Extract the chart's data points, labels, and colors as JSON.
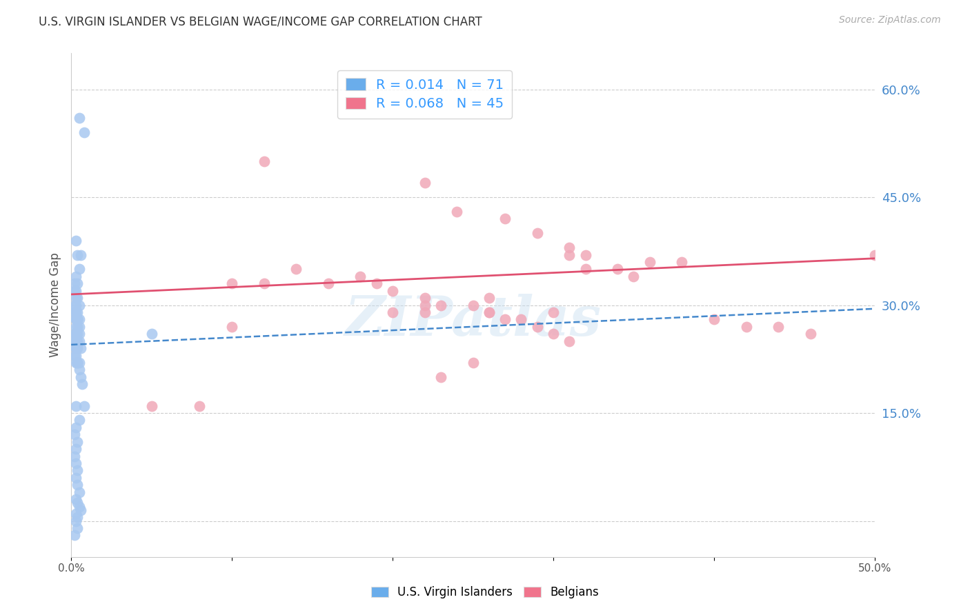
{
  "title": "U.S. VIRGIN ISLANDER VS BELGIAN WAGE/INCOME GAP CORRELATION CHART",
  "source": "Source: ZipAtlas.com",
  "ylabel": "Wage/Income Gap",
  "watermark": "ZIPatlas",
  "legend_entry1": "R = 0.014   N = 71",
  "legend_entry2": "R = 0.068   N = 45",
  "xlim": [
    0.0,
    0.5
  ],
  "ylim": [
    -0.05,
    0.65
  ],
  "grid_color": "#cccccc",
  "bg_color": "#ffffff",
  "blue_scatter_color": "#a8c8f0",
  "pink_scatter_color": "#f0a8b8",
  "blue_line_color": "#4488cc",
  "pink_line_color": "#e05070",
  "right_axis_color": "#4488cc",
  "title_color": "#333333",
  "legend_blue_color": "#6aadeb",
  "legend_pink_color": "#f0748c",
  "blue_scatter_x": [
    0.005,
    0.008,
    0.003,
    0.004,
    0.006,
    0.005,
    0.003,
    0.002,
    0.004,
    0.003,
    0.002,
    0.003,
    0.004,
    0.005,
    0.003,
    0.002,
    0.004,
    0.003,
    0.002,
    0.003,
    0.004,
    0.005,
    0.004,
    0.003,
    0.005,
    0.004,
    0.003,
    0.002,
    0.005,
    0.003,
    0.004,
    0.05,
    0.002,
    0.003,
    0.004,
    0.005,
    0.003,
    0.006,
    0.004,
    0.003,
    0.002,
    0.003,
    0.004,
    0.005,
    0.006,
    0.007,
    0.008,
    0.005,
    0.003,
    0.002,
    0.004,
    0.003,
    0.002,
    0.003,
    0.004,
    0.003,
    0.004,
    0.005,
    0.003,
    0.004,
    0.005,
    0.006,
    0.003,
    0.004,
    0.003,
    0.004,
    0.002,
    0.003,
    0.004,
    0.005,
    0.003
  ],
  "blue_scatter_y": [
    0.56,
    0.54,
    0.39,
    0.37,
    0.37,
    0.35,
    0.34,
    0.33,
    0.33,
    0.32,
    0.32,
    0.31,
    0.31,
    0.3,
    0.3,
    0.3,
    0.29,
    0.29,
    0.29,
    0.28,
    0.28,
    0.28,
    0.28,
    0.28,
    0.27,
    0.27,
    0.27,
    0.26,
    0.26,
    0.26,
    0.26,
    0.26,
    0.25,
    0.25,
    0.25,
    0.25,
    0.24,
    0.24,
    0.24,
    0.23,
    0.23,
    0.22,
    0.22,
    0.21,
    0.2,
    0.19,
    0.16,
    0.14,
    0.13,
    0.12,
    0.11,
    0.1,
    0.09,
    0.08,
    0.07,
    0.06,
    0.05,
    0.04,
    0.03,
    0.025,
    0.02,
    0.015,
    0.01,
    0.005,
    0.0,
    -0.01,
    -0.02,
    0.16,
    0.22,
    0.22,
    0.24
  ],
  "pink_scatter_x": [
    0.12,
    0.22,
    0.24,
    0.27,
    0.29,
    0.31,
    0.31,
    0.32,
    0.14,
    0.18,
    0.19,
    0.2,
    0.22,
    0.22,
    0.23,
    0.25,
    0.26,
    0.26,
    0.27,
    0.28,
    0.29,
    0.3,
    0.31,
    0.32,
    0.34,
    0.35,
    0.36,
    0.38,
    0.4,
    0.42,
    0.44,
    0.46,
    0.23,
    0.25,
    0.1,
    0.5,
    0.05,
    0.08,
    0.1,
    0.12,
    0.16,
    0.2,
    0.22,
    0.26,
    0.3
  ],
  "pink_scatter_y": [
    0.5,
    0.47,
    0.43,
    0.42,
    0.4,
    0.37,
    0.38,
    0.37,
    0.35,
    0.34,
    0.33,
    0.32,
    0.31,
    0.3,
    0.3,
    0.3,
    0.31,
    0.29,
    0.28,
    0.28,
    0.27,
    0.26,
    0.25,
    0.35,
    0.35,
    0.34,
    0.36,
    0.36,
    0.28,
    0.27,
    0.27,
    0.26,
    0.2,
    0.22,
    0.27,
    0.37,
    0.16,
    0.16,
    0.33,
    0.33,
    0.33,
    0.29,
    0.29,
    0.29,
    0.29
  ],
  "blue_trend_x": [
    0.0,
    0.5
  ],
  "blue_trend_y": [
    0.245,
    0.295
  ],
  "pink_trend_x": [
    0.0,
    0.5
  ],
  "pink_trend_y": [
    0.315,
    0.365
  ],
  "legend_labels": [
    "U.S. Virgin Islanders",
    "Belgians"
  ]
}
